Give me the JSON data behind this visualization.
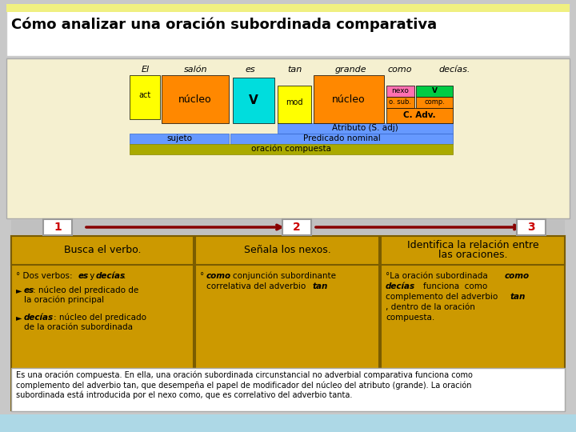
{
  "title": "Cómo analizar una oración subordinada comparativa",
  "bg_outer": "#c8c8c8",
  "bg_top_panel": "#f5f0d0",
  "bg_title_stripe": "#f0f080",
  "title_color": "#000000",
  "words": [
    "El",
    "salón",
    "es",
    "tan",
    "grande",
    "como",
    "decías."
  ],
  "col_el_act": "#ffff00",
  "col_salon_nucleo": "#ff8800",
  "col_es_V": "#00dddd",
  "col_tan_mod": "#ffff00",
  "col_grande_nucleo": "#ff8800",
  "col_como_nexo": "#ff70b0",
  "col_decias_V": "#00cc44",
  "col_osub": "#ff8800",
  "col_comp": "#ff8800",
  "col_cadv": "#ff8800",
  "col_atributo": "#6699ff",
  "col_sujeto": "#6699ff",
  "col_predicado": "#6699ff",
  "col_oracion": "#aaaa00",
  "step_bg": "#cc9900",
  "step_border": "#7a5c00",
  "arrow_color": "#880000",
  "num_bg": "#ffffff",
  "num_border": "#999999",
  "footer_bg": "#add8e6",
  "bottom_box_bg": "#ffffff",
  "bottom_box_border": "#aaaaaa"
}
